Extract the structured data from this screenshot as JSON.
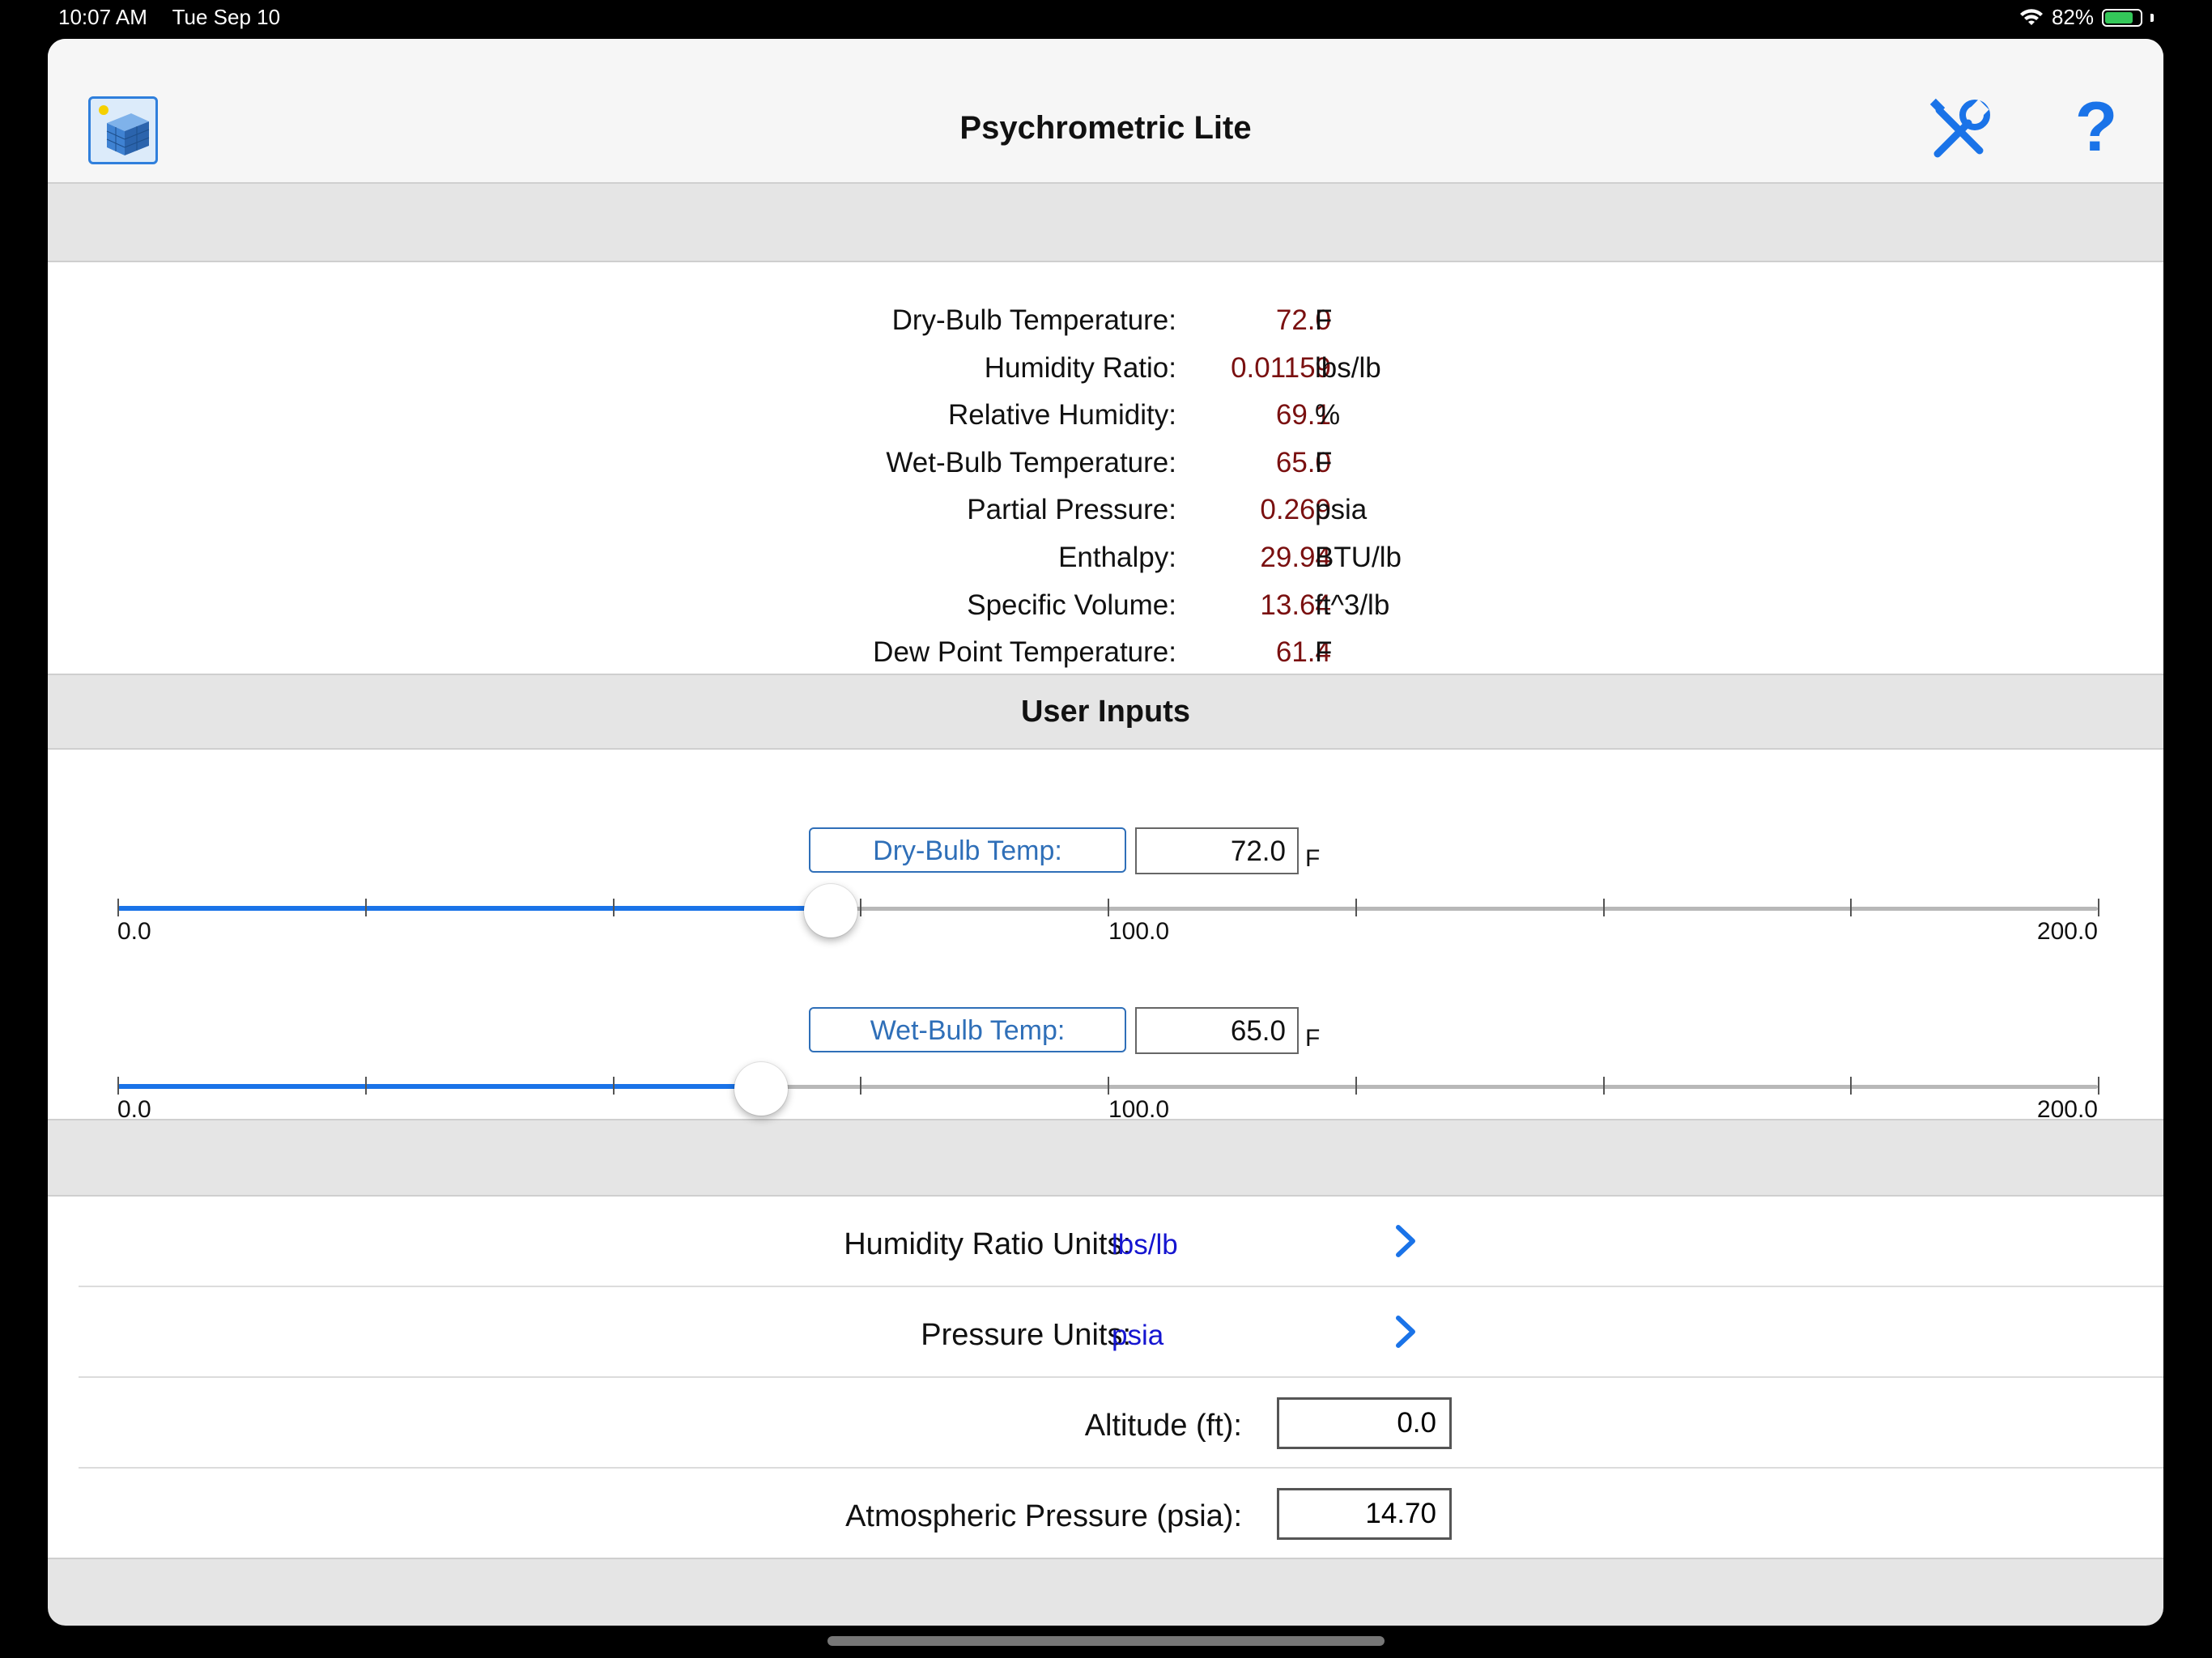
{
  "status_bar": {
    "time": "10:07 AM",
    "date": "Tue Sep 10",
    "battery_text": "82%",
    "battery_level": 0.82
  },
  "nav": {
    "title": "Psychrometric Lite",
    "tools_icon": "wrench-screwdriver-icon",
    "help_icon": "question-mark-icon",
    "help_glyph": "?"
  },
  "results": [
    {
      "label": "Dry-Bulb Temperature:",
      "value": "72.0",
      "unit": "F"
    },
    {
      "label": "Humidity Ratio:",
      "value": "0.01159",
      "unit": "lbs/lb"
    },
    {
      "label": "Relative Humidity:",
      "value": "69.1",
      "unit": "%"
    },
    {
      "label": "Wet-Bulb Temperature:",
      "value": "65.0",
      "unit": "F"
    },
    {
      "label": "Partial Pressure:",
      "value": "0.269",
      "unit": "psia"
    },
    {
      "label": "Enthalpy:",
      "value": "29.94",
      "unit": "BTU/lb"
    },
    {
      "label": "Specific Volume:",
      "value": "13.64",
      "unit": "ft^3/lb"
    },
    {
      "label": "Dew Point Temperature:",
      "value": "61.4",
      "unit": "F"
    }
  ],
  "user_inputs": {
    "title": "User Inputs",
    "dry_bulb": {
      "button_label": "Dry-Bulb Temp:",
      "value": "72.0",
      "unit": "F",
      "slider_value": 72.0,
      "min": 0,
      "max": 200,
      "min_label": "0.0",
      "mid_label": "100.0",
      "max_label": "200.0"
    },
    "wet_bulb": {
      "button_label": "Wet-Bulb Temp:",
      "value": "65.0",
      "unit": "F",
      "slider_value": 65.0,
      "min": 0,
      "max": 200,
      "min_label": "0.0",
      "mid_label": "100.0",
      "max_label": "200.0"
    }
  },
  "settings": {
    "humidity_ratio_units": {
      "label": "Humidity Ratio Units:",
      "value": "lbs/lb"
    },
    "pressure_units": {
      "label": "Pressure Units:",
      "value": "psia"
    },
    "altitude": {
      "label": "Altitude (ft):",
      "value": "0.0"
    },
    "atmospheric_pressure": {
      "label": "Atmospheric Pressure (psia):",
      "value": "14.70"
    }
  },
  "colors": {
    "accent": "#1a73e8",
    "value_text": "#7a1010",
    "unit_link": "#1515d0"
  }
}
